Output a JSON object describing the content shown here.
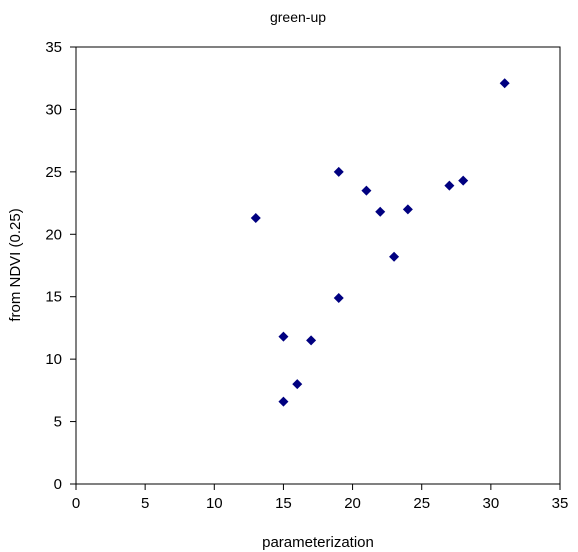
{
  "chart_data": {
    "type": "scatter",
    "title": "green-up",
    "xlabel": "parameterization",
    "ylabel": "from NDVI (0.25)",
    "xlim": [
      0,
      35
    ],
    "ylim": [
      0,
      35
    ],
    "x_ticks": [
      "0",
      "5",
      "10",
      "15",
      "20",
      "25",
      "30",
      "35"
    ],
    "y_ticks": [
      "0",
      "5",
      "10",
      "15",
      "20",
      "25",
      "30",
      "35"
    ],
    "grid": false,
    "legend": "none",
    "marker": "diamond",
    "marker_color": "#000080",
    "points": [
      {
        "x": 13,
        "y": 21.3
      },
      {
        "x": 15,
        "y": 11.8
      },
      {
        "x": 15,
        "y": 6.6
      },
      {
        "x": 16,
        "y": 8.0
      },
      {
        "x": 17,
        "y": 11.5
      },
      {
        "x": 19,
        "y": 25.0
      },
      {
        "x": 19,
        "y": 14.9
      },
      {
        "x": 21,
        "y": 23.5
      },
      {
        "x": 22,
        "y": 21.8
      },
      {
        "x": 23,
        "y": 18.2
      },
      {
        "x": 24,
        "y": 22.0
      },
      {
        "x": 27,
        "y": 23.9
      },
      {
        "x": 28,
        "y": 24.3
      },
      {
        "x": 31,
        "y": 32.1
      }
    ]
  }
}
